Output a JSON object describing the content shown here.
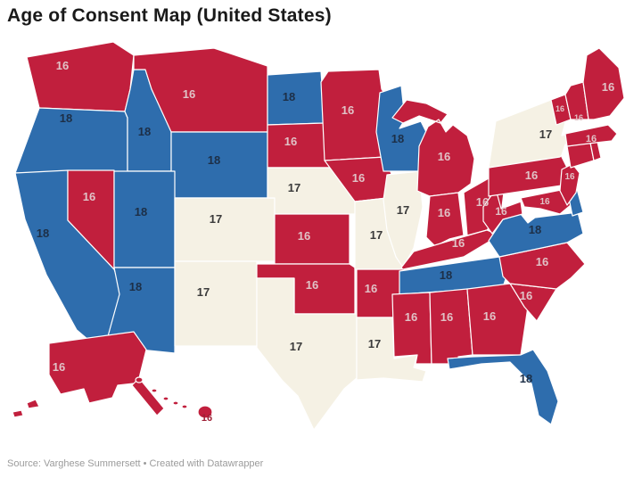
{
  "title": "Age of Consent Map (United States)",
  "source": "Source: Varghese Summersett • Created with Datawrapper",
  "age_colors": {
    "16": "#c11f3d",
    "17": "#f5f1e4",
    "18": "#2e6dad"
  },
  "label_colors": {
    "16": "#e0c2c6",
    "17": "#3b3b3b",
    "18": "#1d2f47",
    "hawaii": "#9e2036"
  },
  "states": [
    {
      "abbr": "WA",
      "name": "Washington",
      "age": 16
    },
    {
      "abbr": "OR",
      "name": "Oregon",
      "age": 18
    },
    {
      "abbr": "CA",
      "name": "California",
      "age": 18
    },
    {
      "abbr": "NV",
      "name": "Nevada",
      "age": 16
    },
    {
      "abbr": "ID",
      "name": "Idaho",
      "age": 18
    },
    {
      "abbr": "MT",
      "name": "Montana",
      "age": 16
    },
    {
      "abbr": "WY",
      "name": "Wyoming",
      "age": 18
    },
    {
      "abbr": "UT",
      "name": "Utah",
      "age": 18
    },
    {
      "abbr": "CO",
      "name": "Colorado",
      "age": 17
    },
    {
      "abbr": "AZ",
      "name": "Arizona",
      "age": 18
    },
    {
      "abbr": "NM",
      "name": "New Mexico",
      "age": 17
    },
    {
      "abbr": "ND",
      "name": "North Dakota",
      "age": 18
    },
    {
      "abbr": "SD",
      "name": "South Dakota",
      "age": 16
    },
    {
      "abbr": "NE",
      "name": "Nebraska",
      "age": 17
    },
    {
      "abbr": "KS",
      "name": "Kansas",
      "age": 16
    },
    {
      "abbr": "OK",
      "name": "Oklahoma",
      "age": 16
    },
    {
      "abbr": "TX",
      "name": "Texas",
      "age": 17
    },
    {
      "abbr": "MN",
      "name": "Minnesota",
      "age": 16
    },
    {
      "abbr": "IA",
      "name": "Iowa",
      "age": 16
    },
    {
      "abbr": "MO",
      "name": "Missouri",
      "age": 17
    },
    {
      "abbr": "AR",
      "name": "Arkansas",
      "age": 16
    },
    {
      "abbr": "LA",
      "name": "Louisiana",
      "age": 17
    },
    {
      "abbr": "WI",
      "name": "Wisconsin",
      "age": 18
    },
    {
      "abbr": "IL",
      "name": "Illinois",
      "age": 17
    },
    {
      "abbr": "MI",
      "name": "Michigan",
      "age": 16
    },
    {
      "abbr": "IN",
      "name": "Indiana",
      "age": 16
    },
    {
      "abbr": "OH",
      "name": "Ohio",
      "age": 16
    },
    {
      "abbr": "KY",
      "name": "Kentucky",
      "age": 16
    },
    {
      "abbr": "TN",
      "name": "Tennessee",
      "age": 18
    },
    {
      "abbr": "MS",
      "name": "Mississippi",
      "age": 16
    },
    {
      "abbr": "AL",
      "name": "Alabama",
      "age": 16
    },
    {
      "abbr": "GA",
      "name": "Georgia",
      "age": 16
    },
    {
      "abbr": "FL",
      "name": "Florida",
      "age": 18
    },
    {
      "abbr": "SC",
      "name": "South Carolina",
      "age": 16
    },
    {
      "abbr": "NC",
      "name": "North Carolina",
      "age": 16
    },
    {
      "abbr": "VA",
      "name": "Virginia",
      "age": 18
    },
    {
      "abbr": "WV",
      "name": "West Virginia",
      "age": 16
    },
    {
      "abbr": "MD",
      "name": "Maryland",
      "age": 16
    },
    {
      "abbr": "DE",
      "name": "Delaware",
      "age": 18
    },
    {
      "abbr": "PA",
      "name": "Pennsylvania",
      "age": 16
    },
    {
      "abbr": "NJ",
      "name": "New Jersey",
      "age": 16
    },
    {
      "abbr": "NY",
      "name": "New York",
      "age": 17
    },
    {
      "abbr": "CT",
      "name": "Connecticut",
      "age": 16
    },
    {
      "abbr": "RI",
      "name": "Rhode Island",
      "age": 16
    },
    {
      "abbr": "VT",
      "name": "Vermont",
      "age": 16
    },
    {
      "abbr": "NH",
      "name": "New Hampshire",
      "age": 16
    },
    {
      "abbr": "MA",
      "name": "Massachusetts",
      "age": 16
    },
    {
      "abbr": "ME",
      "name": "Maine",
      "age": 16
    },
    {
      "abbr": "AK",
      "name": "Alaska",
      "age": 16
    },
    {
      "abbr": "HI",
      "name": "Hawaii",
      "age": 16
    }
  ]
}
